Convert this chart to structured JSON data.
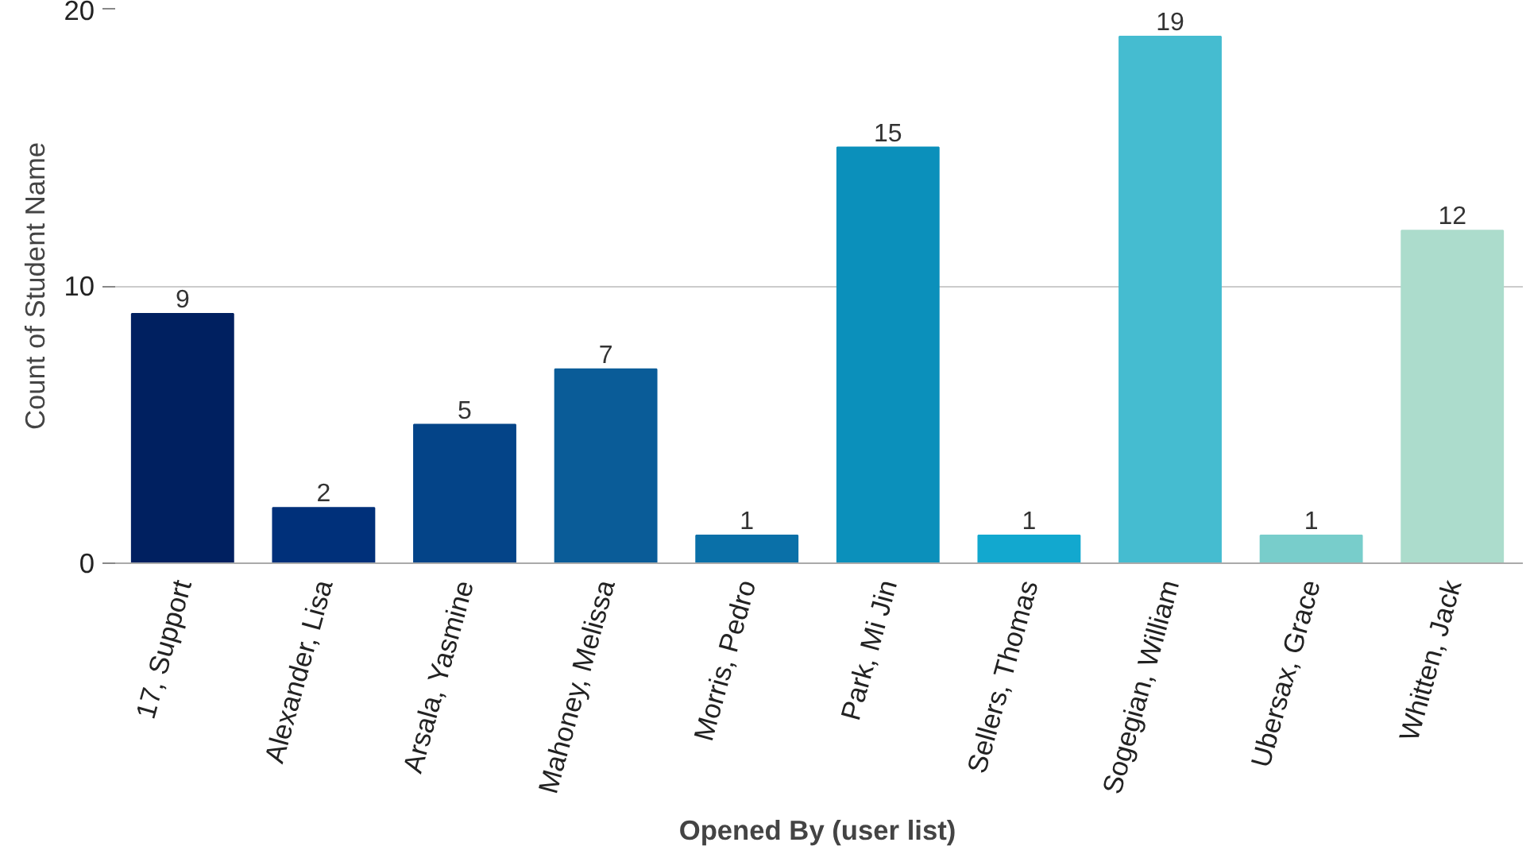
{
  "chart_data": {
    "type": "bar",
    "xlabel": "Opened By (user list)",
    "ylabel": "Count of Student Name",
    "categories": [
      "17, Support",
      "Alexander, Lisa",
      "Arsala, Yasmine",
      "Mahoney, Melissa",
      "Morris, Pedro",
      "Park, Mi Jin",
      "Sellers, Thomas",
      "Sogegian, William",
      "Ubersax, Grace",
      "Whitten, Jack"
    ],
    "values": [
      9,
      2,
      5,
      7,
      1,
      15,
      1,
      19,
      1,
      12
    ],
    "colors": [
      "#002060",
      "#00307a",
      "#044488",
      "#0a5c98",
      "#0a70a8",
      "#0b90bb",
      "#12a8cf",
      "#45bcd0",
      "#78cdcb",
      "#acdccc"
    ],
    "ylim": [
      0,
      20
    ],
    "yticks": [
      0,
      10,
      20
    ],
    "grid": "y",
    "data_labels": true
  }
}
